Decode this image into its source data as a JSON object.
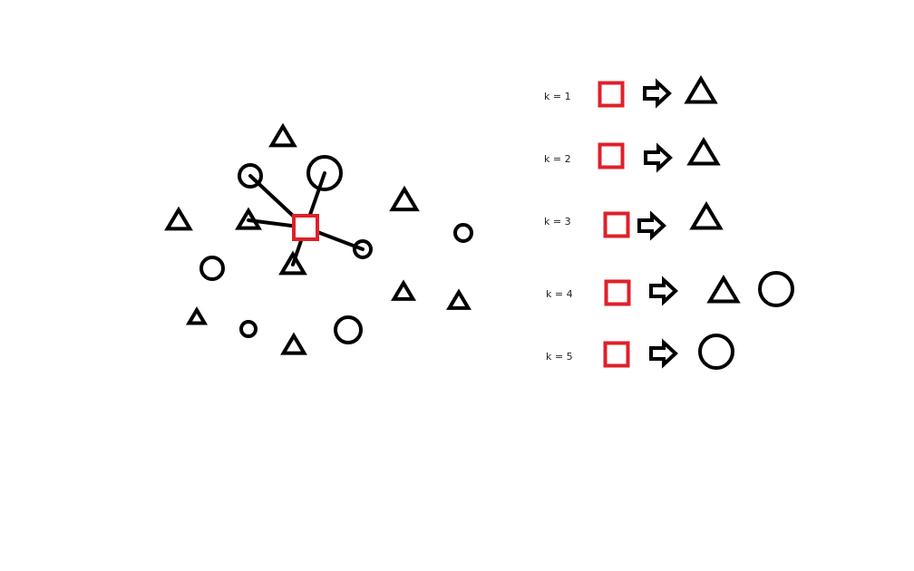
{
  "colors": {
    "stroke": "#000000",
    "query": "#e0202a",
    "background": "#ffffff"
  },
  "scatter": {
    "query": {
      "shape": "square",
      "color": "query"
    },
    "points": [
      {
        "id": "tri-top",
        "shape": "triangle"
      },
      {
        "id": "circ-upper-left",
        "shape": "circle"
      },
      {
        "id": "circ-upper-mid",
        "shape": "circle"
      },
      {
        "id": "tri-left-far",
        "shape": "triangle"
      },
      {
        "id": "tri-left-near",
        "shape": "triangle"
      },
      {
        "id": "tri-below-query",
        "shape": "triangle"
      },
      {
        "id": "circ-right-near",
        "shape": "circle"
      },
      {
        "id": "tri-right-upper",
        "shape": "triangle"
      },
      {
        "id": "circ-right-far",
        "shape": "circle"
      },
      {
        "id": "circ-left",
        "shape": "circle"
      },
      {
        "id": "tri-lower-left",
        "shape": "triangle"
      },
      {
        "id": "circ-lower-small",
        "shape": "circle"
      },
      {
        "id": "tri-lower-mid",
        "shape": "triangle"
      },
      {
        "id": "circ-lower-right",
        "shape": "circle"
      },
      {
        "id": "tri-right-lower",
        "shape": "triangle"
      },
      {
        "id": "tri-far-right-lower",
        "shape": "triangle"
      }
    ],
    "connected": [
      "circ-upper-left",
      "circ-upper-mid",
      "tri-left-near",
      "tri-below-query",
      "circ-right-near"
    ]
  },
  "legend": {
    "rows": [
      {
        "label": "k = 1",
        "result": [
          "triangle"
        ]
      },
      {
        "label": "k = 2",
        "result": [
          "triangle"
        ]
      },
      {
        "label": "k = 3",
        "result": [
          "triangle"
        ]
      },
      {
        "label": "k = 4",
        "result": [
          "triangle",
          "circle"
        ]
      },
      {
        "label": "k = 5",
        "result": [
          "circle"
        ]
      }
    ]
  },
  "icons": {
    "arrow": "right-arrow-icon",
    "query": "red-square-icon",
    "triangle": "triangle-icon",
    "circle": "circle-icon"
  }
}
